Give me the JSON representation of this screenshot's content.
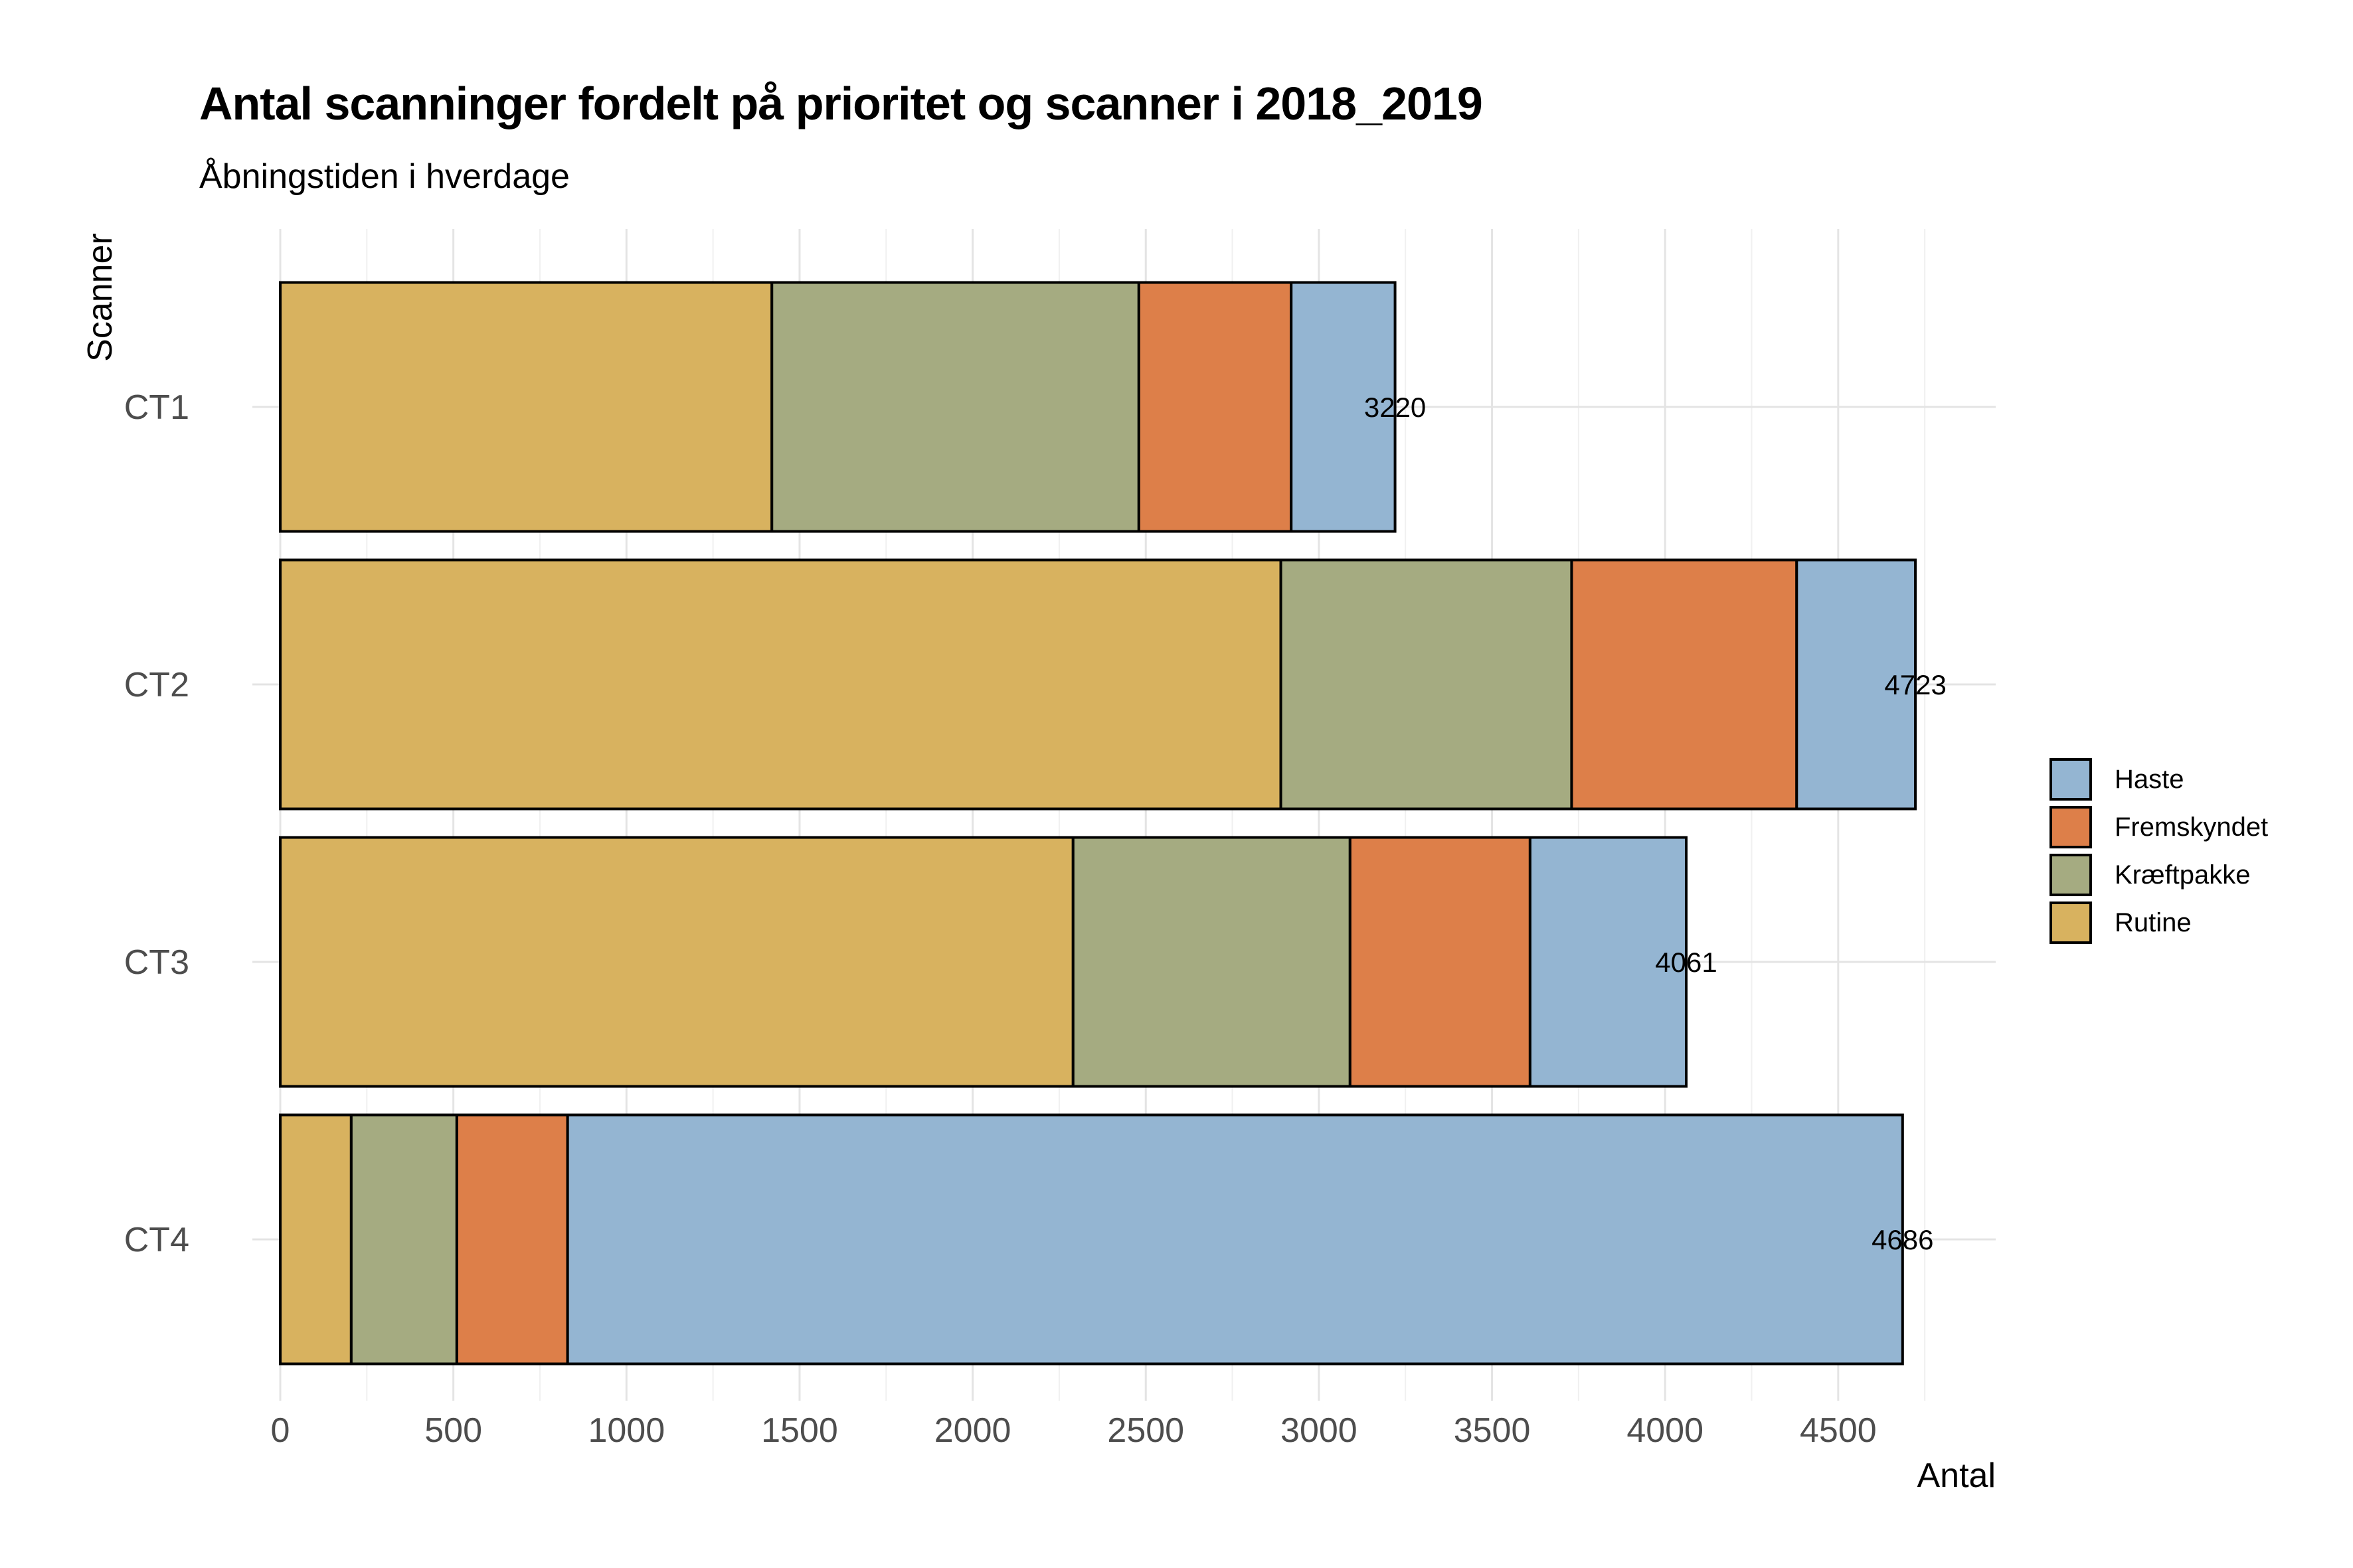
{
  "chart_data": {
    "type": "bar",
    "orientation": "horizontal",
    "stacked": true,
    "title": "Antal scanninger fordelt på prioritet og scanner i 2018_2019",
    "subtitle": "Åbningstiden i hverdage",
    "xlabel": "Antal",
    "ylabel": "Scanner",
    "categories": [
      "CT1",
      "CT2",
      "CT3",
      "CT4"
    ],
    "xlim": [
      0,
      4950
    ],
    "xticks": [
      0,
      500,
      1000,
      1500,
      2000,
      2500,
      3000,
      3500,
      4000,
      4500
    ],
    "grid": true,
    "legend_position": "right",
    "series": [
      {
        "name": "Rutine",
        "color": "#D8B25F",
        "values": [
          1420,
          2890,
          2290,
          205
        ]
      },
      {
        "name": "Kræftpakke",
        "color": "#A5AB81",
        "values": [
          1060,
          840,
          800,
          305
        ]
      },
      {
        "name": "Fremskyndet",
        "color": "#DD7F49",
        "values": [
          440,
          650,
          520,
          320
        ]
      },
      {
        "name": "Haste",
        "color": "#94B5D2",
        "values": [
          300,
          343,
          451,
          3856
        ]
      }
    ],
    "totals": [
      3220,
      4723,
      4061,
      4686
    ],
    "legend": [
      "Haste",
      "Fremskyndet",
      "Kræftpakke",
      "Rutine"
    ]
  }
}
